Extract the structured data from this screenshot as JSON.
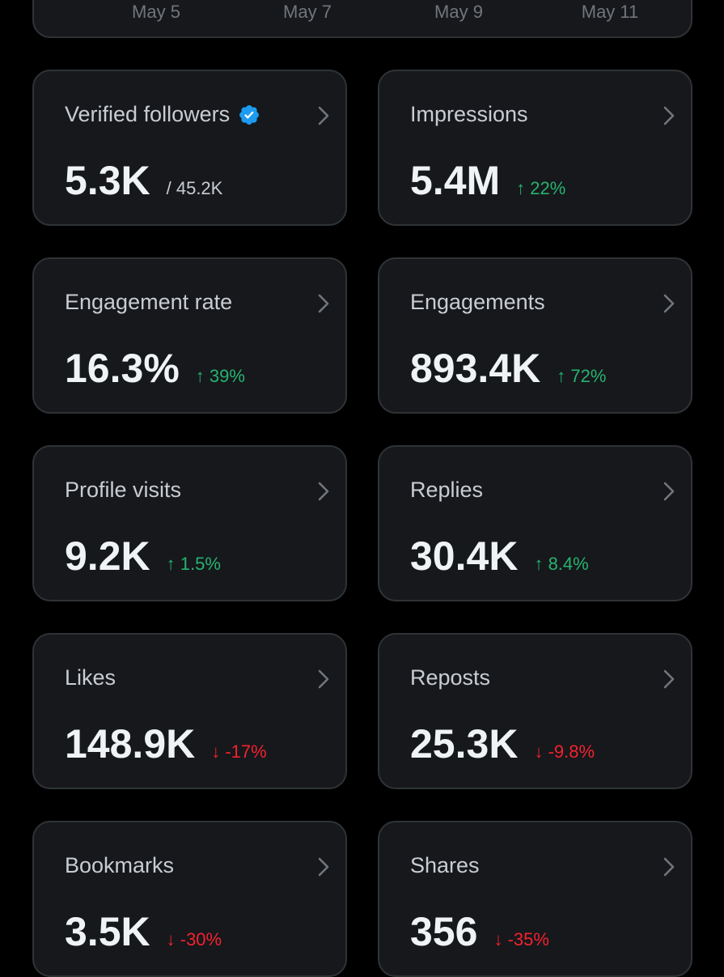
{
  "chart_axis": {
    "labels": [
      "May 5",
      "May 7",
      "May 9",
      "May 11"
    ]
  },
  "cards": [
    {
      "title": "Verified followers",
      "verified": true,
      "value": "5.3K",
      "total": "/ 45.2K"
    },
    {
      "title": "Impressions",
      "value": "5.4M",
      "change": "22%",
      "direction": "up"
    },
    {
      "title": "Engagement rate",
      "value": "16.3%",
      "change": "39%",
      "direction": "up"
    },
    {
      "title": "Engagements",
      "value": "893.4K",
      "change": "72%",
      "direction": "up"
    },
    {
      "title": "Profile visits",
      "value": "9.2K",
      "change": "1.5%",
      "direction": "up"
    },
    {
      "title": "Replies",
      "value": "30.4K",
      "change": "8.4%",
      "direction": "up"
    },
    {
      "title": "Likes",
      "value": "148.9K",
      "change": "-17%",
      "direction": "down"
    },
    {
      "title": "Reposts",
      "value": "25.3K",
      "change": "-9.8%",
      "direction": "down"
    },
    {
      "title": "Bookmarks",
      "value": "3.5K",
      "change": "-30%",
      "direction": "down"
    },
    {
      "title": "Shares",
      "value": "356",
      "change": "-35%",
      "direction": "down"
    }
  ]
}
